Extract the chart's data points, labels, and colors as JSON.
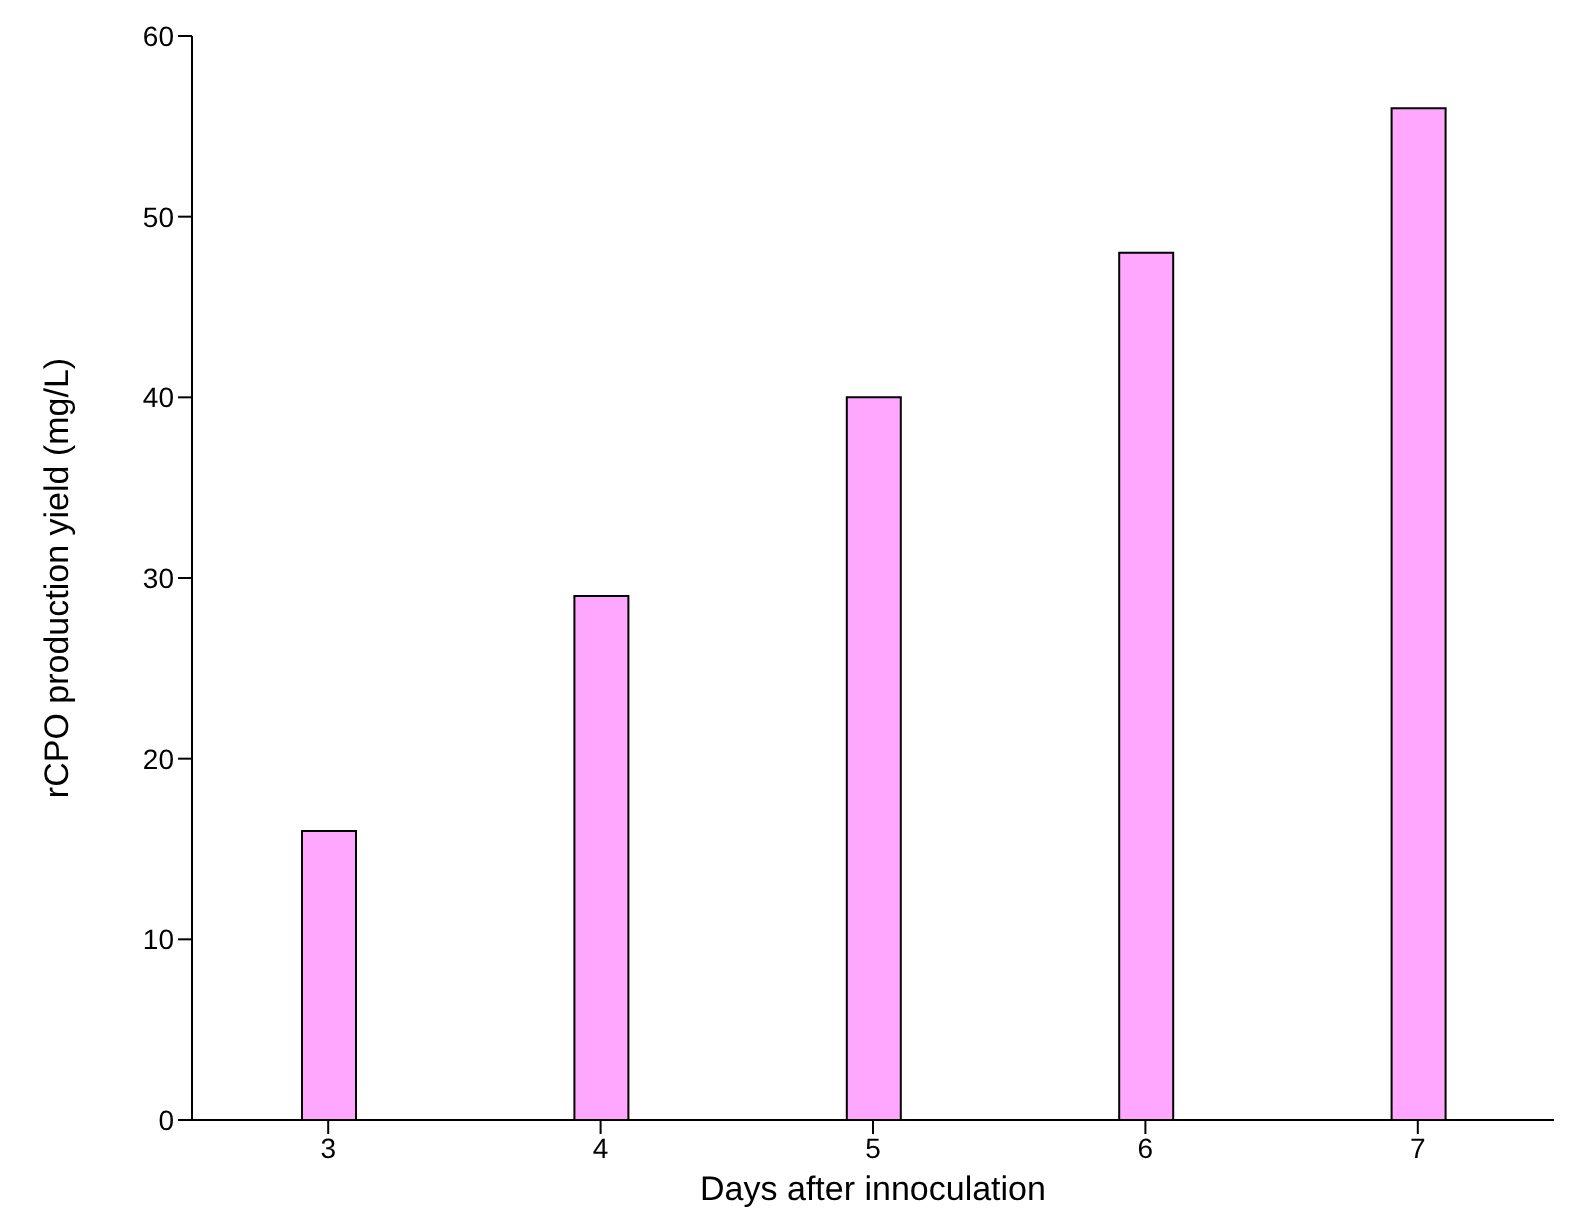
{
  "chart_data": {
    "type": "bar",
    "xlabel": "Days after innoculation",
    "ylabel": "rCPO production yield (mg/L)",
    "categories": [
      "3",
      "4",
      "5",
      "6",
      "7"
    ],
    "values": [
      16,
      29,
      40,
      48,
      56
    ],
    "color": "#ffa6ff",
    "ylim": [
      0,
      60
    ],
    "yticks": [
      0,
      10,
      20,
      30,
      40,
      50,
      60
    ],
    "grid": false,
    "legend": false
  }
}
